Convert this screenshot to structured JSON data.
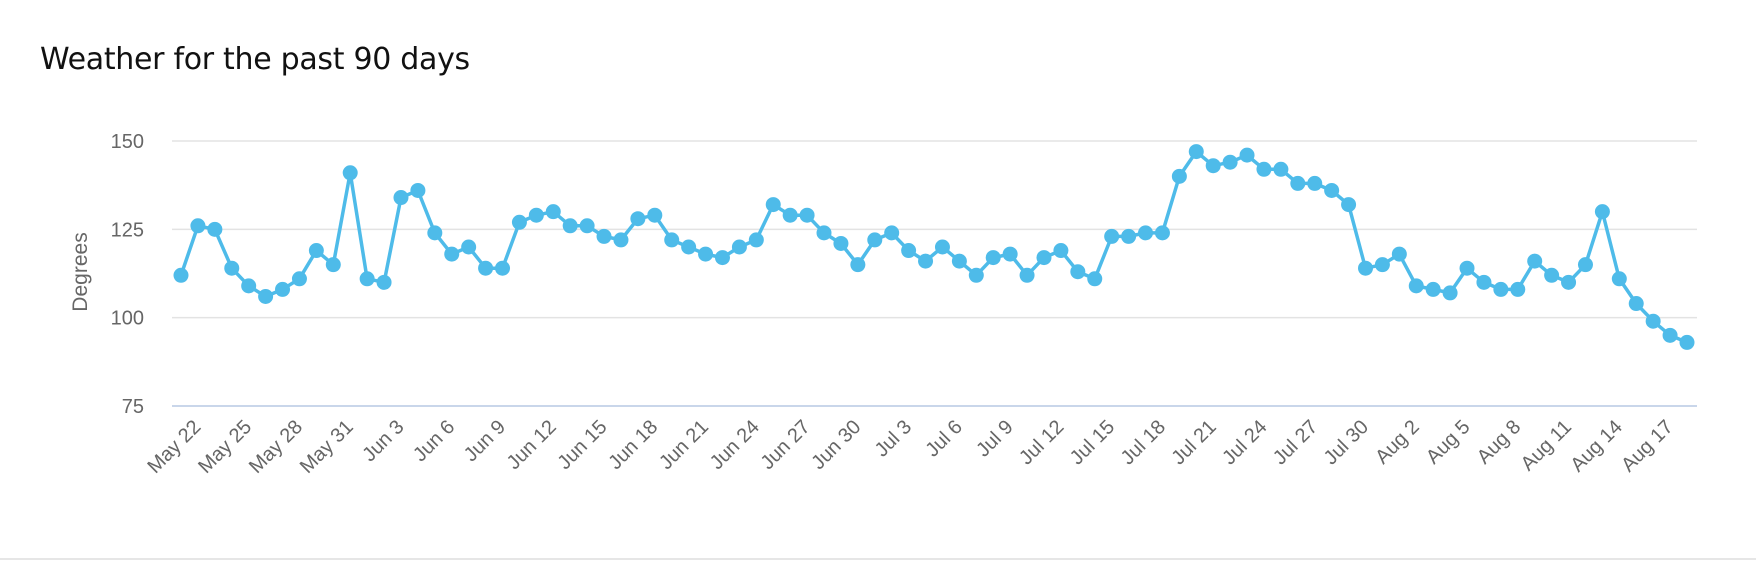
{
  "page": {
    "title": "Weather for the past 90 days"
  },
  "chart_data": {
    "type": "line",
    "title": "Weather for the past 90 days",
    "xlabel": "",
    "ylabel": "Degrees",
    "ylim": [
      75,
      150
    ],
    "yticks": [
      75,
      100,
      125,
      150
    ],
    "grid": true,
    "legend": "none",
    "color": "#4ebbe9",
    "tick_labels": [
      "May 22",
      "May 25",
      "May 28",
      "May 31",
      "Jun 3",
      "Jun 6",
      "Jun 9",
      "Jun 12",
      "Jun 15",
      "Jun 18",
      "Jun 21",
      "Jun 24",
      "Jun 27",
      "Jun 30",
      "Jul 3",
      "Jul 6",
      "Jul 9",
      "Jul 12",
      "Jul 15",
      "Jul 18",
      "Jul 21",
      "Jul 24",
      "Jul 27",
      "Jul 30",
      "Aug 2",
      "Aug 5",
      "Aug 8",
      "Aug 11",
      "Aug 14",
      "Aug 17"
    ],
    "x": [
      "May 21",
      "May 22",
      "May 23",
      "May 24",
      "May 25",
      "May 26",
      "May 27",
      "May 28",
      "May 29",
      "May 30",
      "May 31",
      "Jun 1",
      "Jun 2",
      "Jun 3",
      "Jun 4",
      "Jun 5",
      "Jun 6",
      "Jun 7",
      "Jun 8",
      "Jun 9",
      "Jun 10",
      "Jun 11",
      "Jun 12",
      "Jun 13",
      "Jun 14",
      "Jun 15",
      "Jun 16",
      "Jun 17",
      "Jun 18",
      "Jun 19",
      "Jun 20",
      "Jun 21",
      "Jun 22",
      "Jun 23",
      "Jun 24",
      "Jun 25",
      "Jun 26",
      "Jun 27",
      "Jun 28",
      "Jun 29",
      "Jun 30",
      "Jul 1",
      "Jul 2",
      "Jul 3",
      "Jul 4",
      "Jul 5",
      "Jul 6",
      "Jul 7",
      "Jul 8",
      "Jul 9",
      "Jul 10",
      "Jul 11",
      "Jul 12",
      "Jul 13",
      "Jul 14",
      "Jul 15",
      "Jul 16",
      "Jul 17",
      "Jul 18",
      "Jul 19",
      "Jul 20",
      "Jul 21",
      "Jul 22",
      "Jul 23",
      "Jul 24",
      "Jul 25",
      "Jul 26",
      "Jul 27",
      "Jul 28",
      "Jul 29",
      "Jul 30",
      "Jul 31",
      "Aug 1",
      "Aug 2",
      "Aug 3",
      "Aug 4",
      "Aug 5",
      "Aug 6",
      "Aug 7",
      "Aug 8",
      "Aug 9",
      "Aug 10",
      "Aug 11",
      "Aug 12",
      "Aug 13",
      "Aug 14",
      "Aug 15",
      "Aug 16",
      "Aug 17",
      "Aug 18"
    ],
    "values": [
      112,
      126,
      125,
      114,
      109,
      106,
      108,
      111,
      119,
      115,
      141,
      111,
      110,
      134,
      136,
      124,
      118,
      120,
      114,
      114,
      127,
      129,
      130,
      126,
      126,
      123,
      122,
      128,
      129,
      122,
      120,
      118,
      117,
      120,
      122,
      132,
      129,
      129,
      124,
      121,
      115,
      122,
      124,
      119,
      116,
      120,
      116,
      112,
      117,
      118,
      112,
      117,
      119,
      113,
      111,
      123,
      123,
      124,
      124,
      140,
      147,
      143,
      144,
      146,
      142,
      142,
      138,
      138,
      136,
      132,
      114,
      115,
      118,
      109,
      108,
      107,
      114,
      110,
      108,
      108,
      116,
      112,
      110,
      115,
      130,
      111,
      104,
      99,
      95,
      93
    ]
  }
}
